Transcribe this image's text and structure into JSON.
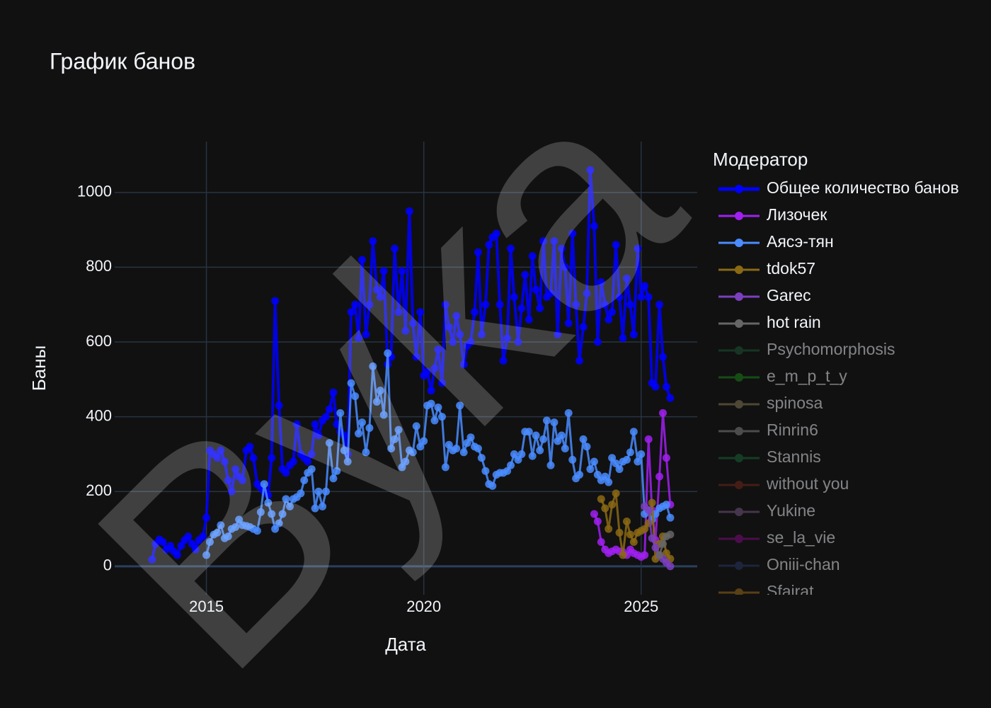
{
  "chart_data": {
    "type": "line",
    "title": "График банов",
    "x_label": "Дата",
    "y_label": "Баны",
    "legend_title": "Модератор",
    "watermark": "Byka",
    "xlim": [
      2012.89,
      2026.29
    ],
    "ylim": [
      -76,
      1136
    ],
    "xticks": [
      2015,
      2020,
      2025
    ],
    "yticks": [
      0,
      200,
      400,
      600,
      800,
      1000
    ],
    "grid": true,
    "legend_position": "right",
    "series": [
      {
        "name": "Общее количество банов",
        "color": "#0000ff",
        "x": [
          2013.75,
          2013.83,
          2013.92,
          2014.0,
          2014.08,
          2014.17,
          2014.25,
          2014.33,
          2014.42,
          2014.5,
          2014.58,
          2014.67,
          2014.75,
          2014.83,
          2014.92,
          2015.0,
          2015.08,
          2015.17,
          2015.25,
          2015.33,
          2015.42,
          2015.5,
          2015.58,
          2015.67,
          2015.75,
          2015.83,
          2015.92,
          2016.0,
          2016.08,
          2016.17,
          2016.25,
          2016.33,
          2016.42,
          2016.5,
          2016.58,
          2016.67,
          2016.75,
          2016.83,
          2016.92,
          2017.0,
          2017.08,
          2017.17,
          2017.25,
          2017.33,
          2017.42,
          2017.5,
          2017.58,
          2017.67,
          2017.75,
          2017.83,
          2017.92,
          2018.0,
          2018.08,
          2018.17,
          2018.25,
          2018.33,
          2018.42,
          2018.5,
          2018.58,
          2018.67,
          2018.75,
          2018.83,
          2018.92,
          2019.0,
          2019.08,
          2019.17,
          2019.25,
          2019.33,
          2019.42,
          2019.5,
          2019.58,
          2019.67,
          2019.75,
          2019.83,
          2019.92,
          2020.0,
          2020.08,
          2020.17,
          2020.25,
          2020.33,
          2020.42,
          2020.5,
          2020.58,
          2020.67,
          2020.75,
          2020.83,
          2020.92,
          2021.0,
          2021.08,
          2021.17,
          2021.25,
          2021.33,
          2021.42,
          2021.5,
          2021.58,
          2021.67,
          2021.75,
          2021.83,
          2021.92,
          2022.0,
          2022.08,
          2022.17,
          2022.25,
          2022.33,
          2022.42,
          2022.5,
          2022.58,
          2022.67,
          2022.75,
          2022.83,
          2022.92,
          2023.0,
          2023.08,
          2023.17,
          2023.25,
          2023.33,
          2023.42,
          2023.5,
          2023.58,
          2023.67,
          2023.75,
          2023.83,
          2023.92,
          2024.0,
          2024.08,
          2024.17,
          2024.25,
          2024.33,
          2024.42,
          2024.5,
          2024.58,
          2024.67,
          2024.75,
          2024.83,
          2024.92,
          2025.0,
          2025.08,
          2025.17,
          2025.25,
          2025.33,
          2025.42,
          2025.5,
          2025.58,
          2025.67
        ],
        "values": [
          18,
          60,
          72,
          65,
          45,
          55,
          40,
          30,
          55,
          70,
          80,
          60,
          45,
          70,
          80,
          130,
          310,
          300,
          290,
          310,
          280,
          230,
          200,
          260,
          240,
          230,
          310,
          320,
          290,
          220,
          210,
          200,
          190,
          290,
          710,
          430,
          260,
          250,
          270,
          280,
          380,
          300,
          290,
          280,
          300,
          380,
          350,
          390,
          400,
          420,
          465,
          380,
          360,
          350,
          300,
          680,
          700,
          610,
          820,
          620,
          700,
          870,
          740,
          720,
          790,
          540,
          560,
          850,
          680,
          790,
          630,
          950,
          650,
          560,
          680,
          510,
          520,
          470,
          530,
          580,
          490,
          700,
          640,
          600,
          670,
          620,
          540,
          590,
          600,
          680,
          840,
          620,
          700,
          860,
          880,
          890,
          700,
          550,
          610,
          850,
          720,
          600,
          690,
          780,
          660,
          830,
          740,
          690,
          870,
          720,
          730,
          870,
          620,
          850,
          800,
          650,
          890,
          700,
          550,
          640,
          730,
          1060,
          910,
          600,
          760,
          700,
          660,
          680,
          860,
          720,
          610,
          770,
          700,
          620,
          850,
          720,
          750,
          720,
          490,
          480,
          700,
          560,
          480,
          450
        ]
      },
      {
        "name": "Лизочек",
        "color": "#a020f0",
        "x": [
          2023.92,
          2024.0,
          2024.08,
          2024.17,
          2024.25,
          2024.33,
          2024.42,
          2024.5,
          2024.58,
          2024.67,
          2024.75,
          2024.83,
          2024.92,
          2025.0,
          2025.08,
          2025.17,
          2025.25,
          2025.33,
          2025.42,
          2025.5,
          2025.58,
          2025.67
        ],
        "values": [
          140,
          120,
          65,
          45,
          35,
          40,
          45,
          40,
          38,
          30,
          45,
          35,
          30,
          25,
          30,
          340,
          150,
          70,
          240,
          410,
          290,
          165
        ]
      },
      {
        "name": "Аясэ-тян",
        "color": "#4a8cff",
        "x": [
          2015.0,
          2015.08,
          2015.17,
          2015.25,
          2015.33,
          2015.42,
          2015.5,
          2015.58,
          2015.67,
          2015.75,
          2015.83,
          2015.92,
          2016.0,
          2016.08,
          2016.17,
          2016.25,
          2016.33,
          2016.42,
          2016.5,
          2016.58,
          2016.67,
          2016.75,
          2016.83,
          2016.92,
          2017.0,
          2017.08,
          2017.17,
          2017.25,
          2017.33,
          2017.42,
          2017.5,
          2017.58,
          2017.67,
          2017.75,
          2017.83,
          2017.92,
          2018.0,
          2018.08,
          2018.17,
          2018.25,
          2018.33,
          2018.42,
          2018.5,
          2018.58,
          2018.67,
          2018.75,
          2018.83,
          2018.92,
          2019.0,
          2019.08,
          2019.17,
          2019.25,
          2019.33,
          2019.42,
          2019.5,
          2019.58,
          2019.67,
          2019.75,
          2019.83,
          2019.92,
          2020.0,
          2020.08,
          2020.17,
          2020.25,
          2020.33,
          2020.42,
          2020.5,
          2020.58,
          2020.67,
          2020.75,
          2020.83,
          2020.92,
          2021.0,
          2021.08,
          2021.17,
          2021.25,
          2021.33,
          2021.42,
          2021.5,
          2021.58,
          2021.67,
          2021.75,
          2021.83,
          2021.92,
          2022.0,
          2022.08,
          2022.17,
          2022.25,
          2022.33,
          2022.42,
          2022.5,
          2022.58,
          2022.67,
          2022.75,
          2022.83,
          2022.92,
          2023.0,
          2023.08,
          2023.17,
          2023.25,
          2023.33,
          2023.42,
          2023.5,
          2023.58,
          2023.67,
          2023.75,
          2023.83,
          2023.92,
          2024.0,
          2024.08,
          2024.17,
          2024.25,
          2024.33,
          2024.42,
          2024.5,
          2024.58,
          2024.67,
          2024.75,
          2024.83,
          2024.92,
          2025.0,
          2025.08,
          2025.17,
          2025.25,
          2025.33,
          2025.42,
          2025.5,
          2025.58,
          2025.67
        ],
        "values": [
          30,
          65,
          85,
          90,
          110,
          75,
          80,
          100,
          105,
          125,
          110,
          108,
          105,
          100,
          95,
          145,
          220,
          170,
          140,
          100,
          115,
          140,
          180,
          160,
          180,
          185,
          195,
          230,
          250,
          260,
          155,
          200,
          160,
          200,
          330,
          235,
          255,
          410,
          310,
          280,
          490,
          455,
          355,
          385,
          305,
          370,
          535,
          440,
          470,
          405,
          570,
          315,
          340,
          365,
          265,
          280,
          310,
          305,
          375,
          320,
          335,
          430,
          435,
          390,
          425,
          400,
          265,
          325,
          310,
          315,
          430,
          305,
          330,
          345,
          320,
          315,
          290,
          255,
          220,
          215,
          245,
          250,
          250,
          255,
          270,
          300,
          285,
          300,
          360,
          360,
          295,
          350,
          310,
          340,
          390,
          270,
          385,
          335,
          350,
          315,
          410,
          285,
          235,
          245,
          340,
          320,
          260,
          280,
          245,
          230,
          240,
          225,
          290,
          275,
          260,
          280,
          285,
          305,
          360,
          280,
          300,
          140,
          150,
          125,
          140,
          155,
          160,
          165,
          130
        ]
      },
      {
        "name": "tdok57",
        "color": "#8b6914",
        "x": [
          2024.08,
          2024.17,
          2024.25,
          2024.33,
          2024.42,
          2024.5,
          2024.58,
          2024.67,
          2024.75,
          2024.83,
          2024.92,
          2025.0,
          2025.08,
          2025.17,
          2025.25,
          2025.33,
          2025.42,
          2025.5,
          2025.58,
          2025.67
        ],
        "values": [
          180,
          155,
          100,
          165,
          195,
          90,
          30,
          120,
          85,
          65,
          90,
          95,
          100,
          115,
          170,
          20,
          60,
          80,
          35,
          20
        ]
      },
      {
        "name": "Garec",
        "color": "#7b3fbf",
        "x": [
          2025.08,
          2025.17,
          2025.25,
          2025.33,
          2025.42,
          2025.5,
          2025.58,
          2025.67
        ],
        "values": [
          160,
          150,
          75,
          50,
          30,
          20,
          10,
          0
        ]
      },
      {
        "name": "hot rain",
        "color": "#666666",
        "x": [
          2025.42,
          2025.5,
          2025.58,
          2025.67
        ],
        "values": [
          30,
          60,
          80,
          85
        ]
      },
      {
        "name": "Psychomorphosis",
        "color": "#1e5a3a",
        "visible": "legendonly",
        "x": [],
        "values": []
      },
      {
        "name": "e_m_p_t_y",
        "color": "#1a8a1a",
        "visible": "legendonly",
        "x": [],
        "values": []
      },
      {
        "name": "spinosa",
        "color": "#8c7e5a",
        "visible": "legendonly",
        "x": [],
        "values": []
      },
      {
        "name": "Rinrin6",
        "color": "#888888",
        "visible": "legendonly",
        "x": [],
        "values": []
      },
      {
        "name": "Stannis",
        "color": "#1a6a3a",
        "visible": "legendonly",
        "x": [],
        "values": []
      },
      {
        "name": "without you",
        "color": "#7a2a1a",
        "visible": "legendonly",
        "x": [],
        "values": []
      },
      {
        "name": "Yukine",
        "color": "#7a5a8a",
        "visible": "legendonly",
        "x": [],
        "values": []
      },
      {
        "name": "se_la_vie",
        "color": "#8a0a8a",
        "visible": "legendonly",
        "x": [],
        "values": []
      },
      {
        "name": "Oniii-chan",
        "color": "#2a3a6a",
        "visible": "legendonly",
        "x": [],
        "values": []
      },
      {
        "name": "Sfairat",
        "color": "#a0701a",
        "visible": "legendonly",
        "x": [],
        "values": []
      }
    ]
  }
}
